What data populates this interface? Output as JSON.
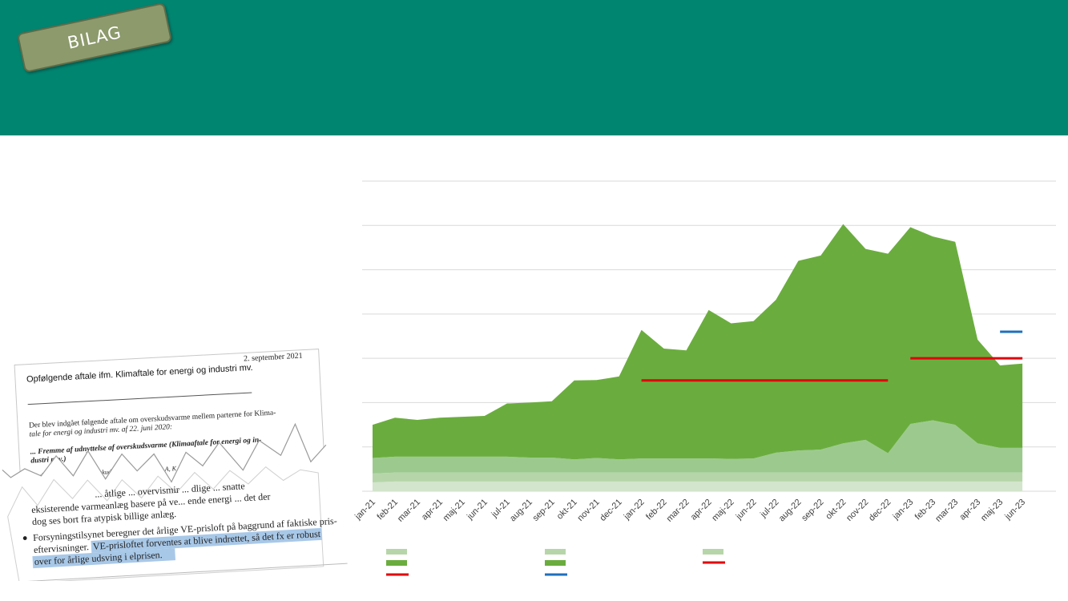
{
  "badge": {
    "label": "BILAG"
  },
  "document": {
    "title": "Opfølgende aftale ifm. Klimaftale for energi og industri mv.",
    "date": "2. september 2021",
    "intro_1": "Der blev indgået følgende aftale om overskudsvarme mellem parterne for Klima-",
    "intro_2": "tale for energi og industri mv. af 22. juni 2020:",
    "heading_1": "... Fremme af udnyttelse af overskudsvarme (Klimaaftale for energi og in-",
    "heading_2": "dustri m.v.)",
    "fragment_1": "Med Aftale om ... e af overskudsvarme ... rti 20... L, A, K, DF, ...",
    "fragment_2": "V, ... beskattet at ud...",
    "body_1": "... åtlige ... overvismir ... dlige ... snatte",
    "body_2": "eksisterende varmeanlæg basere på ve... ende energi ... det der",
    "body_3": "dog ses bort fra atypisk billige anlæg.",
    "bullet_1": "Forsyningstilsynet beregner det årlige VE-prisloft på baggrund af faktiske pris-",
    "bullet_2": "eftervisninger.",
    "highlight_1": "VE-prisloftet forventes at blive indrettet, så det fx er robust",
    "highlight_2": "over for årlige udsving i elprisen."
  },
  "colors": {
    "header": "#008571",
    "series": [
      "#d3e5cc",
      "#b6d6aa",
      "#9cca8e",
      "#6aad3e"
    ],
    "line_red": "#e0000f",
    "line_blue": "#1f6fbf",
    "legend_light": "#b6d6aa",
    "legend_dark": "#6aad3e"
  },
  "chart_data": {
    "type": "area",
    "stacked": true,
    "categories": [
      "jan-21",
      "feb-21",
      "mar-21",
      "apr-21",
      "maj-21",
      "jun-21",
      "jul-21",
      "aug-21",
      "sep-21",
      "okt-21",
      "nov-21",
      "dec-21",
      "jan-22",
      "feb-22",
      "mar-22",
      "apr-22",
      "maj-22",
      "jun-22",
      "jul-22",
      "aug-22",
      "sep-22",
      "okt-22",
      "nov-22",
      "dec-22",
      "jan-23",
      "feb-23",
      "mar-23",
      "apr-23",
      "maj-23",
      "jun-23"
    ],
    "ylim": [
      0,
      7
    ],
    "grid": true,
    "series": [
      {
        "values": [
          0.2,
          0.22,
          0.22,
          0.22,
          0.22,
          0.22,
          0.22,
          0.22,
          0.22,
          0.22,
          0.22,
          0.22,
          0.22,
          0.22,
          0.22,
          0.22,
          0.22,
          0.22,
          0.22,
          0.22,
          0.22,
          0.22,
          0.22,
          0.22,
          0.22,
          0.22,
          0.22,
          0.22,
          0.22,
          0.22
        ]
      },
      {
        "values": [
          0.2,
          0.2,
          0.2,
          0.2,
          0.2,
          0.2,
          0.2,
          0.2,
          0.2,
          0.2,
          0.2,
          0.2,
          0.2,
          0.2,
          0.2,
          0.2,
          0.2,
          0.2,
          0.2,
          0.2,
          0.2,
          0.2,
          0.2,
          0.2,
          0.2,
          0.2,
          0.2,
          0.2,
          0.2,
          0.2
        ]
      },
      {
        "values": [
          0.35,
          0.36,
          0.36,
          0.36,
          0.36,
          0.36,
          0.36,
          0.34,
          0.34,
          0.3,
          0.33,
          0.3,
          0.32,
          0.32,
          0.32,
          0.32,
          0.31,
          0.32,
          0.45,
          0.5,
          0.52,
          0.66,
          0.74,
          0.44,
          1.1,
          1.18,
          1.08,
          0.66,
          0.56,
          0.56
        ]
      },
      {
        "values": [
          0.75,
          0.88,
          0.83,
          0.88,
          0.9,
          0.92,
          1.2,
          1.24,
          1.27,
          1.78,
          1.76,
          1.87,
          2.9,
          2.48,
          2.44,
          3.35,
          3.06,
          3.1,
          3.45,
          4.28,
          4.38,
          4.95,
          4.31,
          4.5,
          4.44,
          4.15,
          4.13,
          2.34,
          1.86,
          1.9
        ]
      }
    ],
    "reference_lines": [
      {
        "color": "red",
        "from": "jan-22",
        "to": "dec-22",
        "value": 2.5
      },
      {
        "color": "red",
        "from": "jan-23",
        "to": "jun-23",
        "value": 3.0
      },
      {
        "color": "blue",
        "from": "maj-23",
        "to": "jun-23",
        "value": 3.6
      }
    ],
    "legend": {
      "placement": "bottom"
    }
  }
}
